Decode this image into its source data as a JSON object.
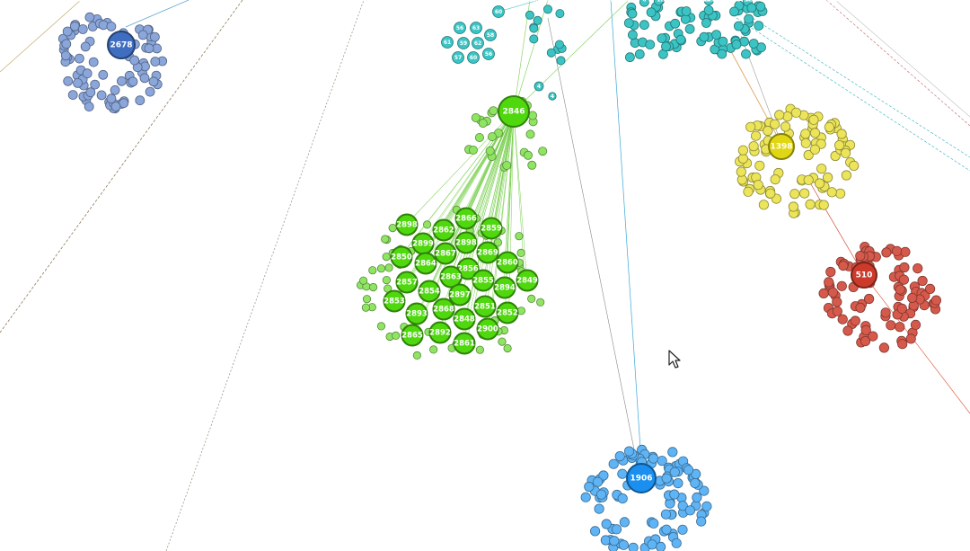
{
  "graph": {
    "hubs": [
      {
        "id": "2678",
        "cluster": "blue"
      },
      {
        "id": "2846",
        "cluster": "green"
      },
      {
        "id": "1398",
        "cluster": "yellow"
      },
      {
        "id": "510",
        "cluster": "red"
      },
      {
        "id": "1906",
        "cluster": "azure"
      }
    ],
    "green_large_nodes": [
      "2898",
      "2866",
      "2862",
      "2859",
      "2899",
      "2898",
      "2867",
      "2869",
      "2850",
      "2864",
      "2856",
      "2860",
      "2863",
      "2855",
      "2849",
      "2857",
      "2854",
      "2897",
      "2894",
      "2853",
      "2868",
      "2851",
      "2893",
      "2848",
      "2852",
      "2865",
      "2892",
      "2900",
      "2861"
    ],
    "teal_small_labels": [
      "60",
      "56",
      "63",
      "58",
      "61",
      "59",
      "62",
      "57"
    ],
    "colors": {
      "blue": "#3f6ec1",
      "green": "#4fd80e",
      "yellow": "#e0d612",
      "red": "#cc3a2c",
      "azure": "#1a8ff0",
      "teal": "#22b8b8"
    }
  }
}
